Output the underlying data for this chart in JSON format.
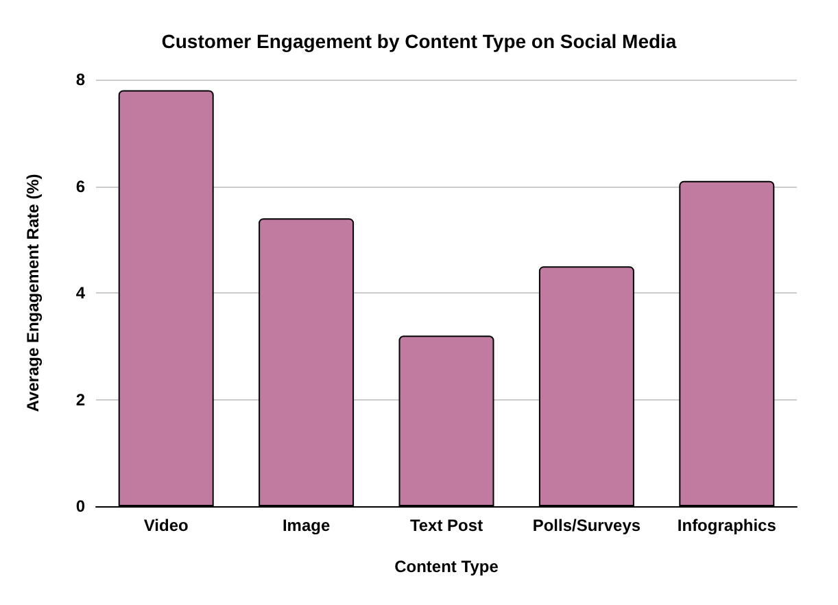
{
  "chart_data": {
    "type": "bar",
    "title": "Customer Engagement by Content Type on Social Media",
    "xlabel": "Content Type",
    "ylabel": "Average Engagement Rate (%)",
    "categories": [
      "Video",
      "Image",
      "Text Post",
      "Polls/Surveys",
      "Infographics"
    ],
    "values": [
      7.8,
      5.4,
      3.2,
      4.5,
      6.1
    ],
    "color": "#c27ba0",
    "ylim": [
      0,
      8
    ],
    "yticks": [
      0,
      2,
      4,
      6,
      8
    ],
    "grid": "y"
  }
}
